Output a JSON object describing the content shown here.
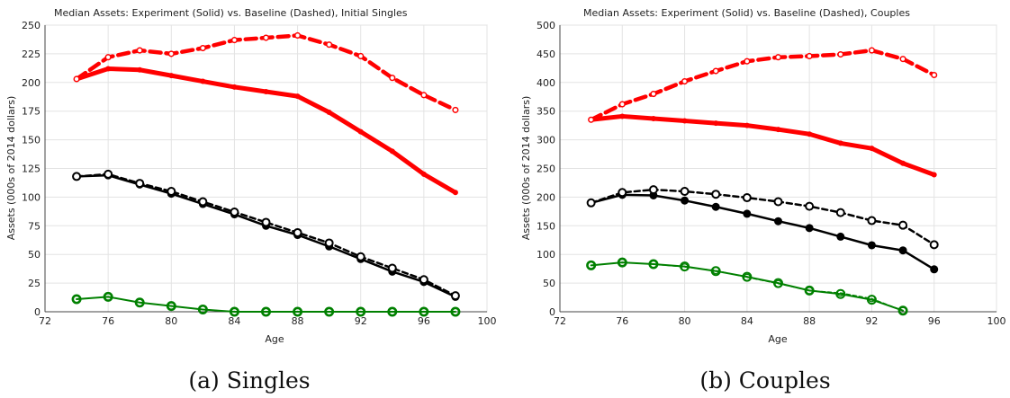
{
  "chart_data": [
    {
      "type": "line",
      "title": "Median Assets: Experiment (Solid) vs. Baseline (Dashed), Initial Singles",
      "xlabel": "Age",
      "ylabel": "Assets (000s of 2014 dollars)",
      "xlim": [
        72,
        100
      ],
      "ylim": [
        0,
        250
      ],
      "xticks": [
        72,
        76,
        80,
        84,
        88,
        92,
        96,
        100
      ],
      "yticks": [
        0,
        25,
        50,
        75,
        100,
        125,
        150,
        175,
        200,
        225,
        250
      ],
      "grid": true,
      "caption": "(a) Singles",
      "series": [
        {
          "color": "#ff0000",
          "style": "solid",
          "marker": "filled",
          "x": [
            74,
            76,
            78,
            80,
            82,
            84,
            86,
            88,
            90,
            92,
            94,
            96,
            98
          ],
          "y": [
            203,
            212,
            211,
            206,
            201,
            196,
            192,
            188,
            174,
            157,
            140,
            120,
            104
          ]
        },
        {
          "color": "#ff0000",
          "style": "dashed",
          "marker": "open",
          "x": [
            74,
            76,
            78,
            80,
            82,
            84,
            86,
            88,
            90,
            92,
            94,
            96,
            98
          ],
          "y": [
            203,
            222,
            228,
            225,
            230,
            237,
            239,
            241,
            233,
            223,
            204,
            189,
            176
          ]
        },
        {
          "color": "#000000",
          "style": "solid",
          "marker": "filled",
          "x": [
            74,
            76,
            78,
            80,
            82,
            84,
            86,
            88,
            90,
            92,
            94,
            96,
            98
          ],
          "y": [
            118,
            119,
            111,
            103,
            94,
            85,
            75,
            67,
            57,
            46,
            35,
            26,
            13
          ]
        },
        {
          "color": "#000000",
          "style": "dashed",
          "marker": "open",
          "x": [
            74,
            76,
            78,
            80,
            82,
            84,
            86,
            88,
            90,
            92,
            94,
            96,
            98
          ],
          "y": [
            118,
            120,
            112,
            105,
            96,
            87,
            78,
            69,
            60,
            48,
            38,
            28,
            14
          ]
        },
        {
          "color": "#008000",
          "style": "solid",
          "marker": "open",
          "x": [
            74,
            76,
            78,
            80,
            82,
            84,
            86,
            88,
            90,
            92,
            94,
            96,
            98
          ],
          "y": [
            11,
            13,
            8,
            5,
            2,
            0,
            0,
            0,
            0,
            0,
            0,
            0,
            0
          ]
        },
        {
          "color": "#008000",
          "style": "dashed",
          "marker": "open",
          "x": [
            74,
            76,
            78,
            80,
            82,
            84,
            86,
            88,
            90,
            92,
            94,
            96,
            98
          ],
          "y": [
            11,
            13,
            8,
            5,
            2,
            0,
            0,
            0,
            0,
            0,
            0,
            0,
            0
          ]
        }
      ]
    },
    {
      "type": "line",
      "title": "Median Assets: Experiment (Solid) vs. Baseline (Dashed), Couples",
      "xlabel": "Age",
      "ylabel": "Assets (000s of 2014 dollars)",
      "xlim": [
        72,
        100
      ],
      "ylim": [
        0,
        500
      ],
      "xticks": [
        72,
        76,
        80,
        84,
        88,
        92,
        96,
        100
      ],
      "yticks": [
        0,
        50,
        100,
        150,
        200,
        250,
        300,
        350,
        400,
        450,
        500
      ],
      "grid": true,
      "caption": "(b) Couples",
      "series": [
        {
          "color": "#ff0000",
          "style": "solid",
          "marker": "filled",
          "x": [
            74,
            76,
            78,
            80,
            82,
            84,
            86,
            88,
            90,
            92,
            94,
            96
          ],
          "y": [
            335,
            341,
            337,
            333,
            329,
            325,
            318,
            310,
            294,
            285,
            259,
            239
          ]
        },
        {
          "color": "#ff0000",
          "style": "dashed",
          "marker": "open",
          "x": [
            74,
            76,
            78,
            80,
            82,
            84,
            86,
            88,
            90,
            92,
            94,
            96
          ],
          "y": [
            335,
            362,
            380,
            402,
            420,
            437,
            444,
            446,
            449,
            456,
            441,
            413
          ]
        },
        {
          "color": "#000000",
          "style": "solid",
          "marker": "filled",
          "x": [
            74,
            76,
            78,
            80,
            82,
            84,
            86,
            88,
            90,
            92,
            94,
            96
          ],
          "y": [
            190,
            204,
            203,
            194,
            183,
            171,
            158,
            146,
            131,
            116,
            107,
            74
          ]
        },
        {
          "color": "#000000",
          "style": "dashed",
          "marker": "open",
          "x": [
            74,
            76,
            78,
            80,
            82,
            84,
            86,
            88,
            90,
            92,
            94,
            96
          ],
          "y": [
            190,
            208,
            213,
            210,
            205,
            199,
            192,
            184,
            173,
            159,
            151,
            117
          ]
        },
        {
          "color": "#008000",
          "style": "solid",
          "marker": "open",
          "x": [
            74,
            76,
            78,
            80,
            82,
            84,
            86,
            88,
            90,
            92,
            94
          ],
          "y": [
            81,
            86,
            83,
            79,
            71,
            61,
            50,
            37,
            31,
            21,
            2
          ]
        },
        {
          "color": "#008000",
          "style": "dashed",
          "marker": "open",
          "x": [
            74,
            76,
            78,
            80,
            82,
            84,
            86,
            88,
            90,
            92,
            94
          ],
          "y": [
            81,
            86,
            83,
            78,
            72,
            60,
            49,
            37,
            33,
            23,
            2
          ]
        }
      ]
    }
  ]
}
